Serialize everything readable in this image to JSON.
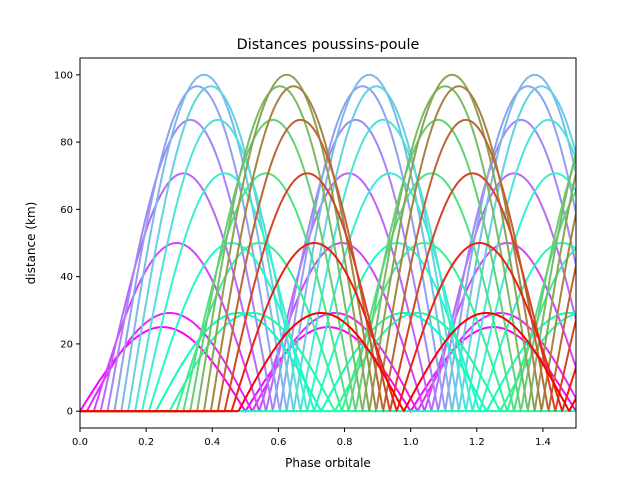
{
  "chart_data": {
    "type": "line",
    "title": "Distances poussins-poule",
    "xlabel": "Phase orbitale",
    "ylabel": "distance (km)",
    "xlim": [
      0,
      1.5
    ],
    "ylim": [
      -5,
      105
    ],
    "xticks": [
      "0.0",
      "0.2",
      "0.4",
      "0.6",
      "0.8",
      "1.0",
      "1.2",
      "1.4"
    ],
    "xtick_values": [
      0,
      0.2,
      0.4,
      0.6,
      0.8,
      1.0,
      1.2,
      1.4
    ],
    "yticks": [
      "0",
      "20",
      "40",
      "60",
      "80",
      "100"
    ],
    "ytick_values": [
      0,
      20,
      40,
      60,
      80,
      100
    ],
    "grid": false,
    "legend": "none",
    "colormap": "rainbow",
    "series_count": 24,
    "series_model": {
      "description_values": "Each curve follows a piecewise-chord distance between two points on a 50 km radius orbit; start phase i/48, angular offset i*pi/12 for i = 0..23, zero before start",
      "orbit_radius_km": 50,
      "series_start_phases": [
        0,
        0.0208,
        0.0417,
        0.0625,
        0.0833,
        0.1042,
        0.125,
        0.1458,
        0.1667,
        0.1875,
        0.2083,
        0.2292,
        0.25,
        0.2708,
        0.2917,
        0.3125,
        0.3333,
        0.3542,
        0.375,
        0.3958,
        0.4167,
        0.4375,
        0.4583,
        0.4792
      ],
      "series_peak_km": [
        25,
        29.2,
        50,
        70.7,
        86.6,
        96.6,
        100,
        96.6,
        86.6,
        70.7,
        50,
        29.2,
        0,
        29.2,
        50,
        70.7,
        86.6,
        96.6,
        100,
        96.6,
        86.6,
        70.7,
        50,
        29.2
      ]
    }
  }
}
